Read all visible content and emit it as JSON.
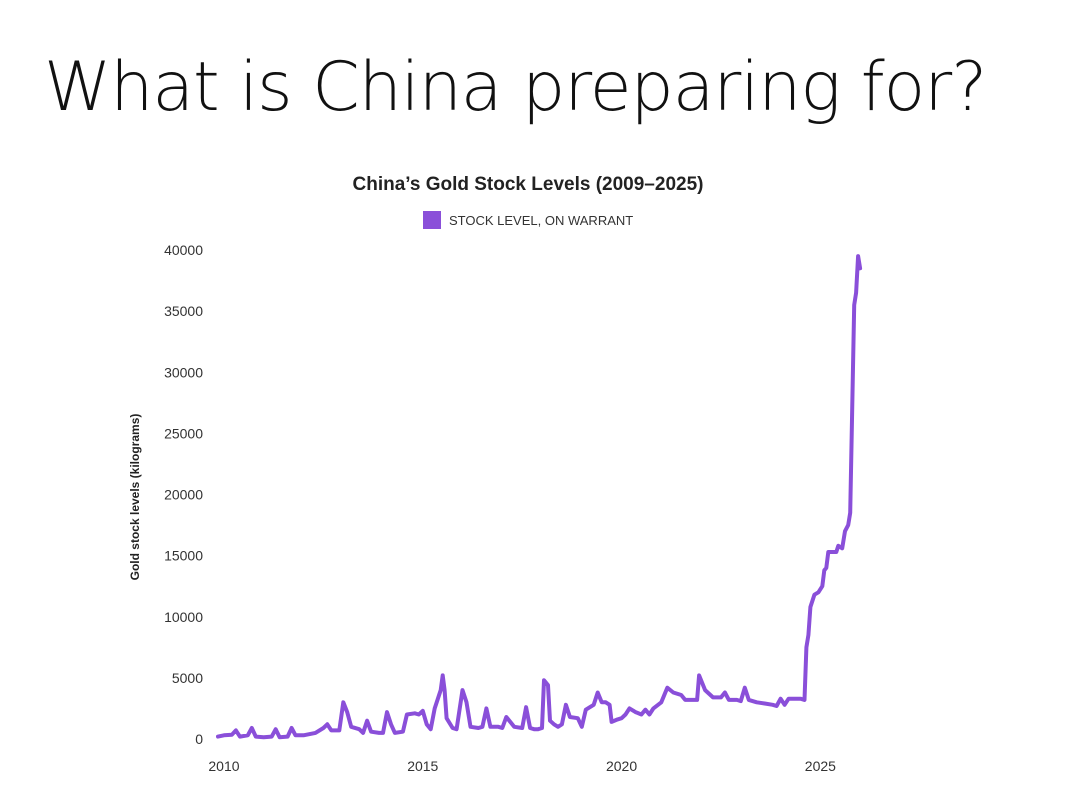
{
  "slide": {
    "title": "What is China preparing for?"
  },
  "colors": {
    "series": "#8a4fd9",
    "legend_swatch": "#8a4fd9"
  },
  "chart_data": {
    "type": "line",
    "title": "China’s Gold Stock Levels (2009–2025)",
    "ylabel": "Gold stock levels (kilograms)",
    "xlabel": "",
    "xlim": [
      2009.9,
      2026.5
    ],
    "ylim": [
      0,
      40000
    ],
    "yticks": [
      0,
      5000,
      10000,
      15000,
      20000,
      25000,
      30000,
      35000,
      40000
    ],
    "xticks": [
      2010,
      2015,
      2020,
      2025
    ],
    "grid": false,
    "legend": {
      "position": "top-center"
    },
    "series": [
      {
        "name": "STOCK LEVEL, ON WARRANT",
        "points": [
          [
            2009.85,
            200
          ],
          [
            2010.0,
            300
          ],
          [
            2010.2,
            350
          ],
          [
            2010.3,
            700
          ],
          [
            2010.4,
            200
          ],
          [
            2010.6,
            300
          ],
          [
            2010.7,
            900
          ],
          [
            2010.8,
            200
          ],
          [
            2011.0,
            150
          ],
          [
            2011.2,
            200
          ],
          [
            2011.3,
            800
          ],
          [
            2011.4,
            150
          ],
          [
            2011.6,
            200
          ],
          [
            2011.7,
            900
          ],
          [
            2011.8,
            300
          ],
          [
            2012.0,
            300
          ],
          [
            2012.3,
            500
          ],
          [
            2012.5,
            900
          ],
          [
            2012.6,
            1200
          ],
          [
            2012.7,
            700
          ],
          [
            2012.9,
            700
          ],
          [
            2013.0,
            3000
          ],
          [
            2013.1,
            2200
          ],
          [
            2013.2,
            1000
          ],
          [
            2013.4,
            800
          ],
          [
            2013.5,
            500
          ],
          [
            2013.6,
            1500
          ],
          [
            2013.7,
            600
          ],
          [
            2013.9,
            500
          ],
          [
            2014.0,
            500
          ],
          [
            2014.1,
            2200
          ],
          [
            2014.2,
            1200
          ],
          [
            2014.3,
            500
          ],
          [
            2014.5,
            600
          ],
          [
            2014.6,
            2000
          ],
          [
            2014.8,
            2100
          ],
          [
            2014.9,
            2000
          ],
          [
            2015.0,
            2300
          ],
          [
            2015.1,
            1200
          ],
          [
            2015.2,
            800
          ],
          [
            2015.3,
            2500
          ],
          [
            2015.45,
            4000
          ],
          [
            2015.5,
            5200
          ],
          [
            2015.55,
            4000
          ],
          [
            2015.6,
            1700
          ],
          [
            2015.75,
            900
          ],
          [
            2015.85,
            800
          ],
          [
            2016.0,
            4000
          ],
          [
            2016.1,
            3000
          ],
          [
            2016.2,
            1000
          ],
          [
            2016.4,
            900
          ],
          [
            2016.5,
            1000
          ],
          [
            2016.6,
            2500
          ],
          [
            2016.7,
            1000
          ],
          [
            2016.9,
            1000
          ],
          [
            2017.0,
            900
          ],
          [
            2017.1,
            1800
          ],
          [
            2017.3,
            1000
          ],
          [
            2017.5,
            900
          ],
          [
            2017.6,
            2600
          ],
          [
            2017.7,
            900
          ],
          [
            2017.8,
            800
          ],
          [
            2017.9,
            800
          ],
          [
            2018.0,
            900
          ],
          [
            2018.05,
            4800
          ],
          [
            2018.15,
            4400
          ],
          [
            2018.2,
            1500
          ],
          [
            2018.3,
            1200
          ],
          [
            2018.4,
            1000
          ],
          [
            2018.5,
            1200
          ],
          [
            2018.6,
            2800
          ],
          [
            2018.7,
            1800
          ],
          [
            2018.9,
            1700
          ],
          [
            2019.0,
            1000
          ],
          [
            2019.1,
            2400
          ],
          [
            2019.3,
            2800
          ],
          [
            2019.4,
            3800
          ],
          [
            2019.5,
            3000
          ],
          [
            2019.6,
            3000
          ],
          [
            2019.7,
            2800
          ],
          [
            2019.75,
            1400
          ],
          [
            2019.9,
            1600
          ],
          [
            2020.0,
            1700
          ],
          [
            2020.1,
            2000
          ],
          [
            2020.2,
            2500
          ],
          [
            2020.35,
            2200
          ],
          [
            2020.5,
            2000
          ],
          [
            2020.6,
            2400
          ],
          [
            2020.7,
            2000
          ],
          [
            2020.8,
            2500
          ],
          [
            2021.0,
            3000
          ],
          [
            2021.15,
            4200
          ],
          [
            2021.3,
            3800
          ],
          [
            2021.5,
            3600
          ],
          [
            2021.6,
            3200
          ],
          [
            2021.75,
            3200
          ],
          [
            2021.9,
            3200
          ],
          [
            2021.95,
            5200
          ],
          [
            2022.1,
            4000
          ],
          [
            2022.3,
            3400
          ],
          [
            2022.5,
            3400
          ],
          [
            2022.6,
            3800
          ],
          [
            2022.7,
            3200
          ],
          [
            2022.9,
            3200
          ],
          [
            2023.0,
            3100
          ],
          [
            2023.1,
            4200
          ],
          [
            2023.2,
            3200
          ],
          [
            2023.4,
            3000
          ],
          [
            2023.6,
            2900
          ],
          [
            2023.8,
            2800
          ],
          [
            2023.9,
            2700
          ],
          [
            2024.0,
            3300
          ],
          [
            2024.1,
            2800
          ],
          [
            2024.2,
            3300
          ],
          [
            2024.4,
            3300
          ],
          [
            2024.5,
            3300
          ],
          [
            2024.6,
            3200
          ],
          [
            2024.65,
            7500
          ],
          [
            2024.7,
            8500
          ],
          [
            2024.75,
            10800
          ],
          [
            2024.85,
            11800
          ],
          [
            2024.95,
            12000
          ],
          [
            2025.05,
            12500
          ],
          [
            2025.1,
            13800
          ],
          [
            2025.15,
            14000
          ],
          [
            2025.2,
            15300
          ],
          [
            2025.3,
            15300
          ],
          [
            2025.4,
            15300
          ],
          [
            2025.45,
            15800
          ],
          [
            2025.55,
            15600
          ],
          [
            2025.62,
            17000
          ],
          [
            2025.7,
            17500
          ],
          [
            2025.75,
            18500
          ],
          [
            2025.8,
            27000
          ],
          [
            2025.85,
            35500
          ],
          [
            2025.9,
            36500
          ],
          [
            2025.95,
            39500
          ],
          [
            2026.0,
            38500
          ]
        ]
      }
    ]
  }
}
